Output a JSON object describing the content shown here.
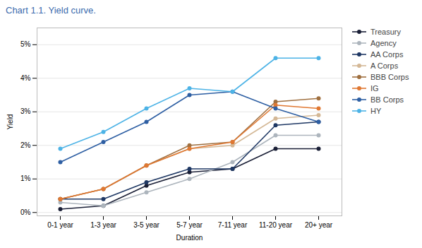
{
  "chart_data": {
    "type": "line",
    "title": "Chart 1.1. Yield curve.",
    "xlabel": "Duration",
    "ylabel": "Yield",
    "categories": [
      "0-1 year",
      "1-3 year",
      "3-5 year",
      "5-7 year",
      "7-11 year",
      "11-20 year",
      "20+ year"
    ],
    "ylim": [
      -0.001,
      0.055
    ],
    "yticks": [
      {
        "value": 0,
        "label": "0%"
      },
      {
        "value": 0.01,
        "label": "1%"
      },
      {
        "value": 0.02,
        "label": "2%"
      },
      {
        "value": 0.03,
        "label": "3%"
      },
      {
        "value": 0.04,
        "label": "4%"
      },
      {
        "value": 0.05,
        "label": "5%"
      }
    ],
    "grid": true,
    "legend": "right",
    "marker": "circle",
    "series": [
      {
        "name": "Treasury",
        "color": "#1a1f36",
        "values": [
          0.001,
          0.002,
          0.008,
          0.012,
          0.013,
          0.019,
          0.019
        ]
      },
      {
        "name": "Agency",
        "color": "#adb5bd",
        "values": [
          0.003,
          0.002,
          0.006,
          0.01,
          0.015,
          0.023,
          0.023
        ]
      },
      {
        "name": "AA Corps",
        "color": "#1f3864",
        "values": [
          0.004,
          0.004,
          0.009,
          0.013,
          0.013,
          0.026,
          0.027
        ]
      },
      {
        "name": "A Corps",
        "color": "#d4b896",
        "values": [
          0.004,
          0.007,
          0.014,
          0.019,
          0.02,
          0.028,
          0.029
        ]
      },
      {
        "name": "BBB Corps",
        "color": "#a07040",
        "values": [
          0.004,
          0.007,
          0.014,
          0.02,
          0.021,
          0.033,
          0.034
        ]
      },
      {
        "name": "IG",
        "color": "#e07832",
        "values": [
          0.004,
          0.007,
          0.014,
          0.019,
          0.021,
          0.032,
          0.031
        ]
      },
      {
        "name": "BB Corps",
        "color": "#2e5fa3",
        "values": [
          0.015,
          0.021,
          0.027,
          0.035,
          0.036,
          0.031,
          0.027
        ]
      },
      {
        "name": "HY",
        "color": "#4db3e6",
        "values": [
          0.019,
          0.024,
          0.031,
          0.037,
          0.036,
          0.046,
          0.046
        ]
      }
    ]
  }
}
